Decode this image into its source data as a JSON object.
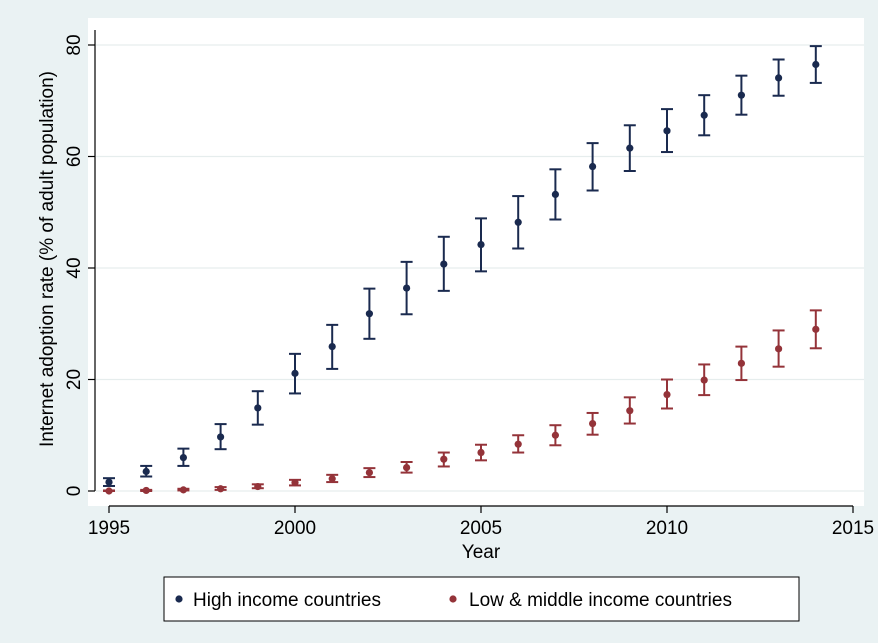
{
  "chart_data": {
    "type": "scatter",
    "xlabel": "Year",
    "ylabel": "Internet adoption rate (% of adult population)",
    "xlim": [
      1995,
      2015
    ],
    "ylim": [
      0,
      80
    ],
    "x_ticks": [
      "1995",
      "2000",
      "2005",
      "2010",
      "2015"
    ],
    "y_ticks": [
      "0",
      "20",
      "40",
      "60",
      "80"
    ],
    "grid": "horizontal",
    "legend_position": "bottom",
    "x": [
      1995,
      1996,
      1997,
      1998,
      1999,
      2000,
      2001,
      2002,
      2003,
      2004,
      2005,
      2006,
      2007,
      2008,
      2009,
      2010,
      2011,
      2012,
      2013,
      2014
    ],
    "series": [
      {
        "name": "High income countries",
        "color": "#1a2a4f",
        "values": [
          1.6,
          3.5,
          6.0,
          9.7,
          14.9,
          21.1,
          25.9,
          31.8,
          36.4,
          40.7,
          44.2,
          48.2,
          53.2,
          58.2,
          61.5,
          64.6,
          67.4,
          71.0,
          74.1,
          76.5
        ],
        "lower": [
          0.9,
          2.6,
          4.5,
          7.5,
          11.9,
          17.5,
          21.9,
          27.3,
          31.7,
          35.9,
          39.4,
          43.5,
          48.7,
          53.9,
          57.4,
          60.8,
          63.8,
          67.5,
          70.9,
          73.2
        ],
        "upper": [
          2.3,
          4.5,
          7.6,
          12.0,
          17.9,
          24.6,
          29.8,
          36.3,
          41.1,
          45.6,
          48.9,
          52.9,
          57.7,
          62.4,
          65.6,
          68.5,
          71.0,
          74.5,
          77.4,
          79.8
        ]
      },
      {
        "name": "Low & middle income countries",
        "color": "#943339",
        "values": [
          0.0,
          0.1,
          0.2,
          0.4,
          0.8,
          1.5,
          2.2,
          3.3,
          4.2,
          5.7,
          6.9,
          8.4,
          10.0,
          12.1,
          14.4,
          17.3,
          19.9,
          22.9,
          25.5,
          29.0
        ],
        "lower": [
          0.0,
          0.0,
          0.1,
          0.2,
          0.5,
          1.0,
          1.6,
          2.5,
          3.3,
          4.4,
          5.5,
          6.9,
          8.2,
          10.1,
          12.1,
          14.8,
          17.2,
          19.9,
          22.3,
          25.6
        ],
        "upper": [
          0.1,
          0.2,
          0.4,
          0.7,
          1.2,
          2.0,
          2.9,
          4.1,
          5.2,
          6.9,
          8.3,
          10.0,
          11.8,
          14.0,
          16.8,
          20.0,
          22.7,
          25.9,
          28.8,
          32.4
        ]
      }
    ]
  }
}
